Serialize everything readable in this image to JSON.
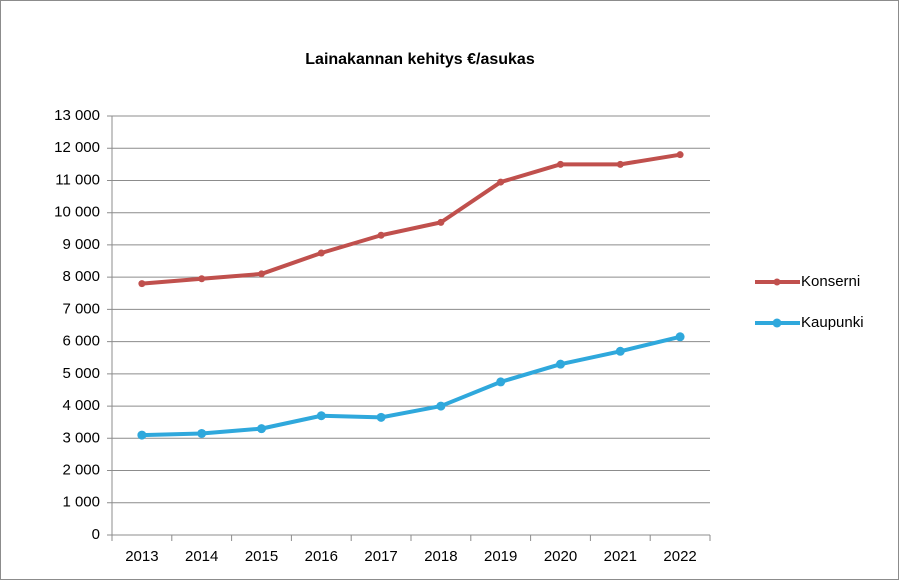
{
  "chart_data": {
    "type": "line",
    "title": "Lainakannan kehitys €/asukas",
    "categories": [
      "2013",
      "2014",
      "2015",
      "2016",
      "2017",
      "2018",
      "2019",
      "2020",
      "2021",
      "2022"
    ],
    "series": [
      {
        "name": "Konserni",
        "color": "#c0504d",
        "values": [
          7800,
          7950,
          8100,
          8750,
          9300,
          9700,
          10950,
          11500,
          11500,
          11800
        ]
      },
      {
        "name": "Kaupunki",
        "color": "#2fa8dc",
        "values": [
          3100,
          3150,
          3300,
          3700,
          3650,
          4000,
          4750,
          5300,
          5700,
          6150
        ]
      }
    ],
    "ylim": [
      0,
      13000
    ],
    "yticks": [
      0,
      {
        "value": 1000,
        "label": "1 000"
      },
      {
        "value": 2000,
        "label": "2 000"
      },
      {
        "value": 3000,
        "label": "3 000"
      },
      {
        "value": 4000,
        "label": "4 000"
      },
      {
        "value": 5000,
        "label": "5 000"
      },
      {
        "value": 6000,
        "label": "6 000"
      },
      {
        "value": 7000,
        "label": "7 000"
      },
      {
        "value": 8000,
        "label": "8 000"
      },
      {
        "value": 9000,
        "label": "9 000"
      },
      {
        "value": 10000,
        "label": "10 000"
      },
      {
        "value": 11000,
        "label": "11 000"
      },
      {
        "value": 12000,
        "label": "12 000"
      },
      {
        "value": 13000,
        "label": "13 000"
      }
    ],
    "grid": true,
    "legend": "right"
  }
}
